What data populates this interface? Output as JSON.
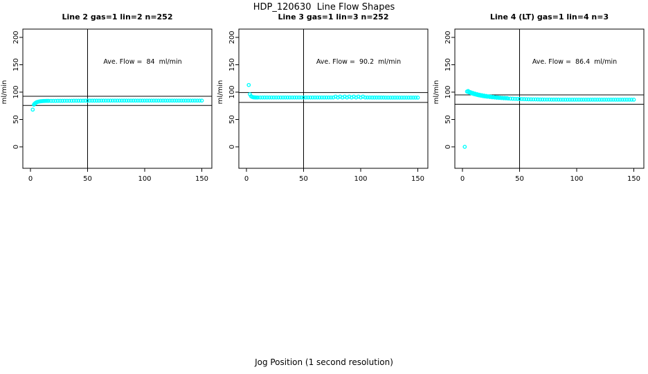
{
  "title": "HDP_120630  Line Flow Shapes",
  "xlabel": "Jog Position (1 second resolution)",
  "colors": {
    "points": "#00FFFF",
    "axis": "#000000",
    "background": "#FFFFFF"
  },
  "axes": {
    "x_ticks": [
      0,
      50,
      100,
      150
    ],
    "y_ticks": [
      0,
      50,
      100,
      150,
      200
    ],
    "ylabel": "ml/min",
    "grid": false,
    "legend": "none"
  },
  "chart_data": [
    {
      "type": "scatter",
      "title": "Line 2 gas=1 lin=2 n=252",
      "annotation": "Ave. Flow =  84  ml/min",
      "ave_flow_ml_min": 84,
      "n": 252,
      "gas": 1,
      "lin": 2,
      "ref_lines_y": [
        92.4,
        75.6
      ],
      "vline_x": 50,
      "xlim": [
        -5,
        158
      ],
      "ylim": [
        -40,
        216
      ],
      "points": [
        [
          2,
          68
        ],
        [
          3,
          77
        ],
        [
          3.5,
          78.5
        ],
        [
          4,
          79.5
        ],
        [
          4.5,
          80.3
        ],
        [
          5,
          81
        ],
        [
          5.5,
          81.6
        ],
        [
          6,
          82
        ],
        [
          7,
          82.6
        ],
        [
          8,
          83
        ],
        [
          9,
          83.3
        ],
        [
          10,
          83.5
        ],
        [
          11,
          83.7
        ],
        [
          12,
          83.8
        ],
        [
          13,
          83.9
        ],
        [
          14,
          84
        ],
        [
          15,
          84
        ],
        [
          16,
          84
        ],
        [
          18,
          84
        ],
        [
          20,
          84
        ],
        [
          22,
          84
        ],
        [
          24,
          84.1
        ],
        [
          26,
          84.1
        ],
        [
          28,
          84.1
        ],
        [
          30,
          84.2
        ],
        [
          32,
          84.2
        ],
        [
          34,
          84.2
        ],
        [
          36,
          84.2
        ],
        [
          38,
          84.3
        ],
        [
          40,
          84.3
        ],
        [
          42,
          84.3
        ],
        [
          44,
          84.3
        ],
        [
          46,
          84.3
        ],
        [
          48,
          84.4
        ],
        [
          50,
          84.4
        ],
        [
          52,
          84.4
        ],
        [
          54,
          84.4
        ],
        [
          56,
          84.4
        ],
        [
          58,
          84.4
        ],
        [
          60,
          84.4
        ],
        [
          62,
          84.5
        ],
        [
          64,
          84.5
        ],
        [
          66,
          84.5
        ],
        [
          68,
          84.5
        ],
        [
          70,
          84.5
        ],
        [
          72,
          84.5
        ],
        [
          74,
          84.5
        ],
        [
          76,
          84.5
        ],
        [
          78,
          84.5
        ],
        [
          80,
          84.5
        ],
        [
          82,
          84.5
        ],
        [
          84,
          84.5
        ],
        [
          86,
          84.5
        ],
        [
          88,
          84.5
        ],
        [
          90,
          84.5
        ],
        [
          92,
          84.5
        ],
        [
          94,
          84.5
        ],
        [
          96,
          84.5
        ],
        [
          98,
          84.5
        ],
        [
          100,
          84.5
        ],
        [
          102,
          84.5
        ],
        [
          104,
          84.5
        ],
        [
          106,
          84.5
        ],
        [
          108,
          84.5
        ],
        [
          110,
          84.5
        ],
        [
          112,
          84.5
        ],
        [
          114,
          84.5
        ],
        [
          116,
          84.5
        ],
        [
          118,
          84.5
        ],
        [
          120,
          84.5
        ],
        [
          122,
          84.5
        ],
        [
          124,
          84.5
        ],
        [
          126,
          84.5
        ],
        [
          128,
          84.5
        ],
        [
          130,
          84.5
        ],
        [
          132,
          84.5
        ],
        [
          134,
          84.5
        ],
        [
          136,
          84.5
        ],
        [
          138,
          84.5
        ],
        [
          140,
          84.5
        ],
        [
          142,
          84.5
        ],
        [
          144,
          84.5
        ],
        [
          146,
          84.5
        ],
        [
          148,
          84.5
        ],
        [
          150,
          84.5
        ]
      ]
    },
    {
      "type": "scatter",
      "title": "Line 3 gas=1 lin=3 n=252",
      "annotation": "Ave. Flow =  90.2  ml/min",
      "ave_flow_ml_min": 90.2,
      "n": 252,
      "gas": 1,
      "lin": 3,
      "ref_lines_y": [
        99.2,
        81.2
      ],
      "vline_x": 50,
      "xlim": [
        -5,
        158
      ],
      "ylim": [
        -40,
        216
      ],
      "points": [
        [
          2,
          113
        ],
        [
          3,
          96
        ],
        [
          4,
          92.5
        ],
        [
          5,
          91.2
        ],
        [
          6,
          90.6
        ],
        [
          7,
          90.4
        ],
        [
          8,
          90.3
        ],
        [
          9,
          90.2
        ],
        [
          10,
          90.2
        ],
        [
          12,
          90.2
        ],
        [
          14,
          90.2
        ],
        [
          16,
          90.2
        ],
        [
          18,
          90.2
        ],
        [
          20,
          90.2
        ],
        [
          22,
          90.2
        ],
        [
          24,
          90.2
        ],
        [
          26,
          90.2
        ],
        [
          28,
          90.2
        ],
        [
          30,
          90.2
        ],
        [
          32,
          90.2
        ],
        [
          34,
          90.2
        ],
        [
          36,
          90.2
        ],
        [
          38,
          90.2
        ],
        [
          40,
          90.2
        ],
        [
          42,
          90.2
        ],
        [
          44,
          90.2
        ],
        [
          46,
          90.2
        ],
        [
          48,
          90.2
        ],
        [
          50,
          90.2
        ],
        [
          52,
          90.2
        ],
        [
          54,
          90.2
        ],
        [
          56,
          90.2
        ],
        [
          58,
          90.2
        ],
        [
          60,
          90.2
        ],
        [
          62,
          90.2
        ],
        [
          64,
          90.2
        ],
        [
          66,
          90.2
        ],
        [
          68,
          90.2
        ],
        [
          70,
          90.2
        ],
        [
          72,
          90.2
        ],
        [
          74,
          90.2
        ],
        [
          76,
          90.2
        ],
        [
          78,
          91.8
        ],
        [
          80,
          90.2
        ],
        [
          82,
          91.8
        ],
        [
          84,
          90.2
        ],
        [
          86,
          91.8
        ],
        [
          88,
          90.2
        ],
        [
          90,
          91.8
        ],
        [
          92,
          90.2
        ],
        [
          94,
          91.8
        ],
        [
          96,
          90.2
        ],
        [
          98,
          91.8
        ],
        [
          100,
          90.2
        ],
        [
          102,
          91.8
        ],
        [
          104,
          90.2
        ],
        [
          106,
          90.2
        ],
        [
          108,
          90.2
        ],
        [
          110,
          90.1
        ],
        [
          112,
          90.1
        ],
        [
          114,
          90.1
        ],
        [
          116,
          90.1
        ],
        [
          118,
          90.1
        ],
        [
          120,
          90.1
        ],
        [
          122,
          90
        ],
        [
          124,
          90
        ],
        [
          126,
          90
        ],
        [
          128,
          90
        ],
        [
          130,
          90
        ],
        [
          132,
          90
        ],
        [
          134,
          90
        ],
        [
          136,
          90
        ],
        [
          138,
          90
        ],
        [
          140,
          90
        ],
        [
          142,
          90
        ],
        [
          144,
          90
        ],
        [
          146,
          90
        ],
        [
          148,
          90
        ],
        [
          150,
          90
        ]
      ]
    },
    {
      "type": "scatter",
      "title": "Line 4 (LT) gas=1 lin=4 n=3",
      "annotation": "Ave. Flow =  86.4  ml/min",
      "ave_flow_ml_min": 86.4,
      "n": 3,
      "gas": 1,
      "lin": 4,
      "ref_lines_y": [
        95.0,
        77.8
      ],
      "vline_x": 50,
      "xlim": [
        -5,
        158
      ],
      "ylim": [
        -40,
        216
      ],
      "points": [
        [
          2,
          0
        ],
        [
          4,
          101
        ],
        [
          5,
          100.2
        ],
        [
          6,
          99.4
        ],
        [
          7,
          98.6
        ],
        [
          8,
          97.9
        ],
        [
          9,
          97.2
        ],
        [
          10,
          96.5
        ],
        [
          11,
          95.9
        ],
        [
          12,
          95.4
        ],
        [
          13,
          94.9
        ],
        [
          14,
          94.4
        ],
        [
          15,
          94
        ],
        [
          16,
          93.6
        ],
        [
          17,
          93.2
        ],
        [
          18,
          92.8
        ],
        [
          19,
          92.5
        ],
        [
          20,
          92.2
        ],
        [
          21,
          91.9
        ],
        [
          22,
          91.6
        ],
        [
          24,
          91.1
        ],
        [
          26,
          90.6
        ],
        [
          28,
          90.2
        ],
        [
          30,
          89.8
        ],
        [
          32,
          89.4
        ],
        [
          34,
          89.1
        ],
        [
          36,
          88.8
        ],
        [
          38,
          88.6
        ],
        [
          40,
          88.3
        ],
        [
          42,
          88.1
        ],
        [
          44,
          87.9
        ],
        [
          46,
          87.7
        ],
        [
          48,
          87.6
        ],
        [
          50,
          87.4
        ],
        [
          52,
          87.3
        ],
        [
          54,
          87.1
        ],
        [
          56,
          87
        ],
        [
          58,
          86.9
        ],
        [
          60,
          86.8
        ],
        [
          62,
          86.7
        ],
        [
          64,
          86.7
        ],
        [
          66,
          86.6
        ],
        [
          68,
          86.5
        ],
        [
          70,
          86.5
        ],
        [
          72,
          86.4
        ],
        [
          74,
          86.4
        ],
        [
          76,
          86.4
        ],
        [
          78,
          86.3
        ],
        [
          80,
          86.3
        ],
        [
          82,
          86.3
        ],
        [
          84,
          86.3
        ],
        [
          86,
          86.2
        ],
        [
          88,
          86.2
        ],
        [
          90,
          86.2
        ],
        [
          92,
          86.2
        ],
        [
          94,
          86.2
        ],
        [
          96,
          86.2
        ],
        [
          98,
          86.2
        ],
        [
          100,
          86.2
        ],
        [
          102,
          86.2
        ],
        [
          104,
          86.2
        ],
        [
          106,
          86.2
        ],
        [
          108,
          86.2
        ],
        [
          110,
          86.2
        ],
        [
          112,
          86.2
        ],
        [
          114,
          86.2
        ],
        [
          116,
          86.2
        ],
        [
          118,
          86.2
        ],
        [
          120,
          86.2
        ],
        [
          122,
          86.2
        ],
        [
          124,
          86.2
        ],
        [
          126,
          86.2
        ],
        [
          128,
          86.2
        ],
        [
          130,
          86.2
        ],
        [
          132,
          86.2
        ],
        [
          134,
          86.2
        ],
        [
          136,
          86.2
        ],
        [
          138,
          86.2
        ],
        [
          140,
          86.2
        ],
        [
          142,
          86.2
        ],
        [
          144,
          86.2
        ],
        [
          146,
          86.2
        ],
        [
          148,
          86.2
        ],
        [
          150,
          86.2
        ],
        [
          5,
          102
        ],
        [
          7,
          100
        ],
        [
          9,
          98.6
        ],
        [
          11,
          97.2
        ],
        [
          13,
          96.2
        ],
        [
          15,
          95.2
        ],
        [
          17,
          94.4
        ],
        [
          19,
          93.6
        ],
        [
          21,
          93
        ],
        [
          23,
          92.3
        ],
        [
          25,
          91.7
        ],
        [
          27,
          91.2
        ],
        [
          29,
          90.7
        ],
        [
          31,
          90.3
        ],
        [
          33,
          89.9
        ],
        [
          35,
          89.6
        ],
        [
          37,
          89.3
        ],
        [
          39,
          89
        ]
      ]
    }
  ]
}
